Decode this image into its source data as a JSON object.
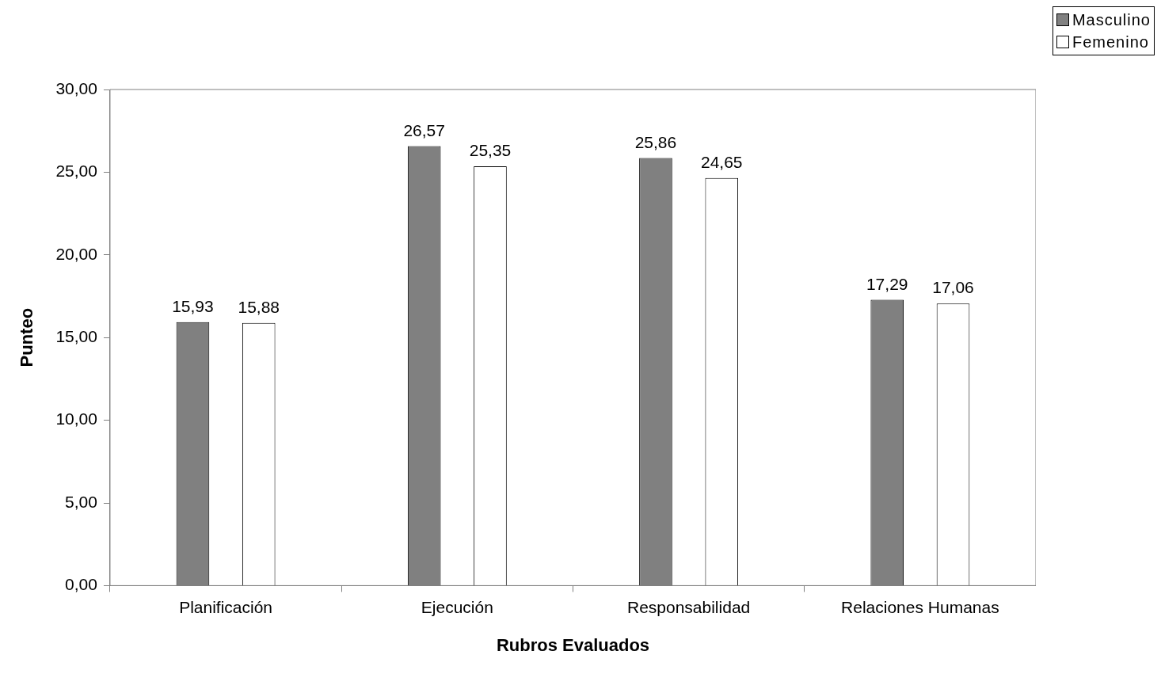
{
  "chart_data": {
    "type": "bar",
    "xlabel": "Rubros Evaluados",
    "ylabel": "Punteo",
    "categories": [
      "Planificación",
      "Ejecución",
      "Responsabilidad",
      "Relaciones Humanas"
    ],
    "series": [
      {
        "name": "Masculino",
        "color": "#808080",
        "values": [
          15.93,
          26.57,
          25.86,
          17.29
        ],
        "value_labels": [
          "15,93",
          "26,57",
          "25,86",
          "17,29"
        ]
      },
      {
        "name": "Femenino",
        "color": "#ffffff",
        "values": [
          15.88,
          25.35,
          24.65,
          17.06
        ],
        "value_labels": [
          "15,88",
          "25,35",
          "24,65",
          "17,06"
        ]
      }
    ],
    "ylim": [
      0,
      30
    ],
    "yticks": [
      {
        "value": 0,
        "label": "0,00"
      },
      {
        "value": 5,
        "label": "5,00"
      },
      {
        "value": 10,
        "label": "10,00"
      },
      {
        "value": 15,
        "label": "15,00"
      },
      {
        "value": 20,
        "label": "20,00"
      },
      {
        "value": 25,
        "label": "25,00"
      },
      {
        "value": 30,
        "label": "30,00"
      }
    ],
    "grid": false,
    "legend": "top right"
  }
}
